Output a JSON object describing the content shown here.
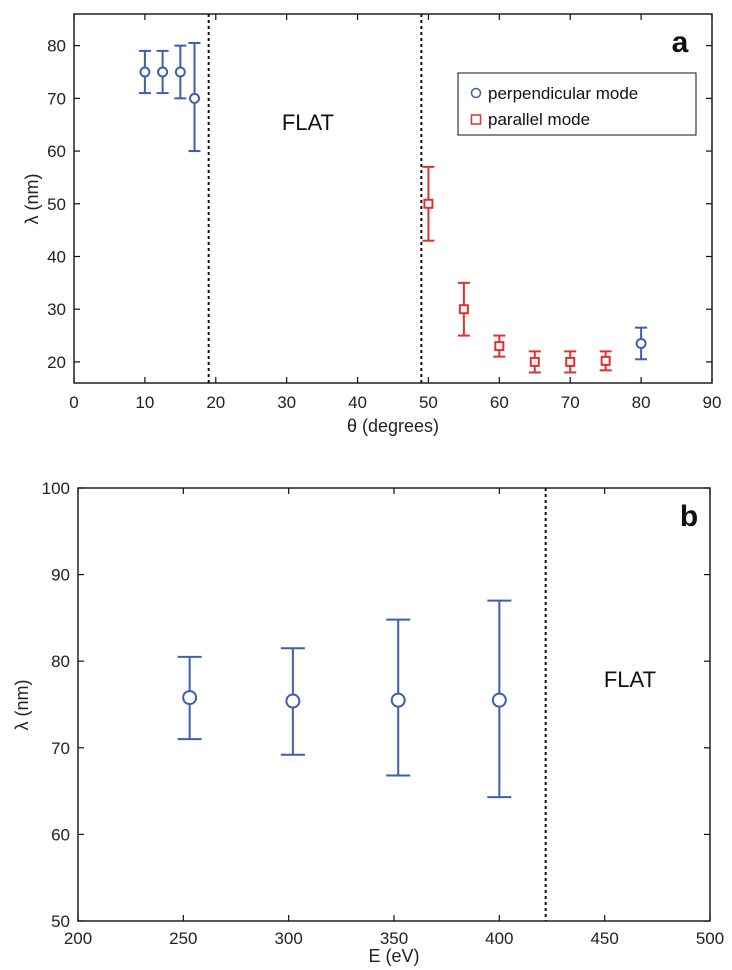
{
  "colors": {
    "blue": "#3d5fad",
    "red": "#e03030",
    "axis": "#111111"
  },
  "chart_data": [
    {
      "panel": "a",
      "type": "scatter",
      "xlabel": "θ (degrees)",
      "ylabel": "λ (nm)",
      "xlim": [
        0,
        90
      ],
      "ylim": [
        16,
        86
      ],
      "xticks": [
        0,
        10,
        20,
        30,
        40,
        50,
        60,
        70,
        80,
        90
      ],
      "yticks": [
        20,
        30,
        40,
        50,
        60,
        70,
        80
      ],
      "grid": false,
      "legend_position": "top-right",
      "annotation": "FLAT",
      "annotation_at": {
        "x": 33,
        "y": 64
      },
      "vlines": [
        19,
        49
      ],
      "series": [
        {
          "name": "perpendicular mode",
          "marker": "circle",
          "color": "#3d5fad",
          "points": [
            {
              "x": 10,
              "y": 75,
              "lo": 71,
              "hi": 79
            },
            {
              "x": 12.5,
              "y": 75,
              "lo": 71,
              "hi": 79
            },
            {
              "x": 15,
              "y": 75,
              "lo": 70,
              "hi": 80
            },
            {
              "x": 17,
              "y": 70,
              "lo": 60,
              "hi": 80.5
            },
            {
              "x": 80,
              "y": 23.5,
              "lo": 20.5,
              "hi": 26.5
            }
          ]
        },
        {
          "name": "parallel mode",
          "marker": "square",
          "color": "#e03030",
          "points": [
            {
              "x": 50,
              "y": 50,
              "lo": 43,
              "hi": 57
            },
            {
              "x": 55,
              "y": 30,
              "lo": 25,
              "hi": 35
            },
            {
              "x": 60,
              "y": 23,
              "lo": 21,
              "hi": 25
            },
            {
              "x": 65,
              "y": 20,
              "lo": 18,
              "hi": 22
            },
            {
              "x": 70,
              "y": 20,
              "lo": 18,
              "hi": 22
            },
            {
              "x": 75,
              "y": 20.2,
              "lo": 18.4,
              "hi": 22
            }
          ]
        }
      ]
    },
    {
      "panel": "b",
      "type": "scatter",
      "xlabel": "E (eV)",
      "ylabel": "λ (nm)",
      "xlim": [
        200,
        500
      ],
      "ylim": [
        50,
        100
      ],
      "xticks": [
        200,
        250,
        300,
        350,
        400,
        450,
        500
      ],
      "yticks": [
        50,
        60,
        70,
        80,
        90,
        100
      ],
      "grid": false,
      "annotation": "FLAT",
      "annotation_at": {
        "x": 462,
        "y": 77
      },
      "vlines": [
        422
      ],
      "series": [
        {
          "marker": "circle",
          "color": "#3d5fad",
          "points": [
            {
              "x": 253,
              "y": 75.8,
              "lo": 71,
              "hi": 80.5
            },
            {
              "x": 302,
              "y": 75.4,
              "lo": 69.2,
              "hi": 81.5
            },
            {
              "x": 352,
              "y": 75.5,
              "lo": 66.8,
              "hi": 84.8
            },
            {
              "x": 400,
              "y": 75.5,
              "lo": 64.3,
              "hi": 87
            }
          ]
        }
      ]
    }
  ]
}
